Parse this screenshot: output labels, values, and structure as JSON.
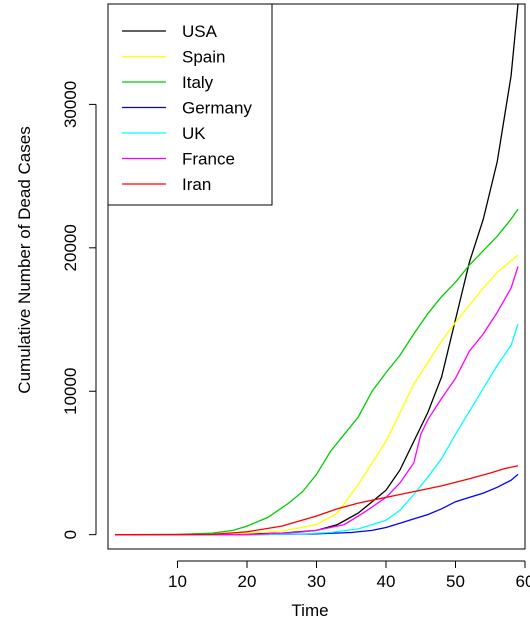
{
  "chart_data": {
    "type": "line",
    "title": "",
    "xlabel": "Time",
    "ylabel": "Cumulative Number of Dead Cases",
    "xlim": [
      0,
      60
    ],
    "ylim": [
      -1000,
      37000
    ],
    "x_ticks": [
      10,
      20,
      30,
      40,
      50,
      60
    ],
    "y_ticks": [
      0,
      10000,
      20000,
      30000
    ],
    "grid": false,
    "legend_position": "top-left",
    "series": [
      {
        "name": "USA",
        "color": "#000000",
        "points": [
          [
            1,
            0
          ],
          [
            10,
            10
          ],
          [
            20,
            50
          ],
          [
            25,
            100
          ],
          [
            30,
            300
          ],
          [
            33,
            700
          ],
          [
            36,
            1500
          ],
          [
            38,
            2300
          ],
          [
            40,
            3100
          ],
          [
            42,
            4500
          ],
          [
            44,
            6500
          ],
          [
            46,
            8500
          ],
          [
            48,
            11000
          ],
          [
            50,
            15000
          ],
          [
            52,
            19000
          ],
          [
            54,
            22000
          ],
          [
            56,
            26000
          ],
          [
            58,
            32000
          ],
          [
            59,
            37000
          ]
        ]
      },
      {
        "name": "Spain",
        "color": "#ffff00",
        "points": [
          [
            1,
            0
          ],
          [
            10,
            5
          ],
          [
            20,
            100
          ],
          [
            25,
            250
          ],
          [
            30,
            700
          ],
          [
            33,
            1500
          ],
          [
            36,
            3500
          ],
          [
            38,
            5000
          ],
          [
            40,
            6500
          ],
          [
            42,
            8500
          ],
          [
            44,
            10500
          ],
          [
            46,
            12000
          ],
          [
            48,
            13500
          ],
          [
            50,
            14800
          ],
          [
            52,
            16000
          ],
          [
            54,
            17200
          ],
          [
            56,
            18300
          ],
          [
            58,
            19100
          ],
          [
            59,
            19500
          ]
        ]
      },
      {
        "name": "Italy",
        "color": "#00cd00",
        "points": [
          [
            1,
            0
          ],
          [
            10,
            20
          ],
          [
            15,
            100
          ],
          [
            18,
            300
          ],
          [
            20,
            600
          ],
          [
            23,
            1200
          ],
          [
            26,
            2200
          ],
          [
            28,
            3000
          ],
          [
            30,
            4200
          ],
          [
            32,
            5800
          ],
          [
            34,
            7000
          ],
          [
            36,
            8200
          ],
          [
            38,
            10000
          ],
          [
            40,
            11300
          ],
          [
            42,
            12500
          ],
          [
            44,
            14000
          ],
          [
            46,
            15400
          ],
          [
            48,
            16600
          ],
          [
            50,
            17600
          ],
          [
            52,
            18800
          ],
          [
            54,
            19800
          ],
          [
            56,
            20800
          ],
          [
            58,
            22000
          ],
          [
            59,
            22700
          ]
        ]
      },
      {
        "name": "Germany",
        "color": "#0000ff",
        "points": [
          [
            1,
            0
          ],
          [
            20,
            0
          ],
          [
            30,
            50
          ],
          [
            35,
            150
          ],
          [
            38,
            300
          ],
          [
            40,
            500
          ],
          [
            42,
            800
          ],
          [
            44,
            1100
          ],
          [
            46,
            1400
          ],
          [
            48,
            1800
          ],
          [
            50,
            2300
          ],
          [
            52,
            2600
          ],
          [
            54,
            2900
          ],
          [
            56,
            3300
          ],
          [
            58,
            3800
          ],
          [
            59,
            4200
          ]
        ]
      },
      {
        "name": "UK",
        "color": "#00ffff",
        "points": [
          [
            1,
            0
          ],
          [
            20,
            0
          ],
          [
            28,
            50
          ],
          [
            32,
            150
          ],
          [
            36,
            400
          ],
          [
            38,
            700
          ],
          [
            40,
            1000
          ],
          [
            42,
            1700
          ],
          [
            44,
            2800
          ],
          [
            46,
            4000
          ],
          [
            48,
            5300
          ],
          [
            50,
            7000
          ],
          [
            52,
            8600
          ],
          [
            54,
            10200
          ],
          [
            56,
            11800
          ],
          [
            58,
            13200
          ],
          [
            59,
            14700
          ]
        ]
      },
      {
        "name": "France",
        "color": "#ff00ff",
        "points": [
          [
            1,
            0
          ],
          [
            20,
            0
          ],
          [
            27,
            150
          ],
          [
            30,
            300
          ],
          [
            34,
            700
          ],
          [
            37,
            1600
          ],
          [
            40,
            2600
          ],
          [
            42,
            3600
          ],
          [
            44,
            5000
          ],
          [
            45,
            7000
          ],
          [
            46,
            8000
          ],
          [
            48,
            9500
          ],
          [
            50,
            10900
          ],
          [
            52,
            12800
          ],
          [
            54,
            14000
          ],
          [
            56,
            15500
          ],
          [
            58,
            17200
          ],
          [
            59,
            18700
          ]
        ]
      },
      {
        "name": "Iran",
        "color": "#ff0000",
        "points": [
          [
            1,
            0
          ],
          [
            10,
            5
          ],
          [
            15,
            20
          ],
          [
            20,
            200
          ],
          [
            25,
            600
          ],
          [
            30,
            1300
          ],
          [
            33,
            1800
          ],
          [
            36,
            2200
          ],
          [
            40,
            2600
          ],
          [
            44,
            3000
          ],
          [
            48,
            3400
          ],
          [
            52,
            3900
          ],
          [
            55,
            4300
          ],
          [
            57,
            4600
          ],
          [
            59,
            4800
          ]
        ]
      }
    ]
  }
}
